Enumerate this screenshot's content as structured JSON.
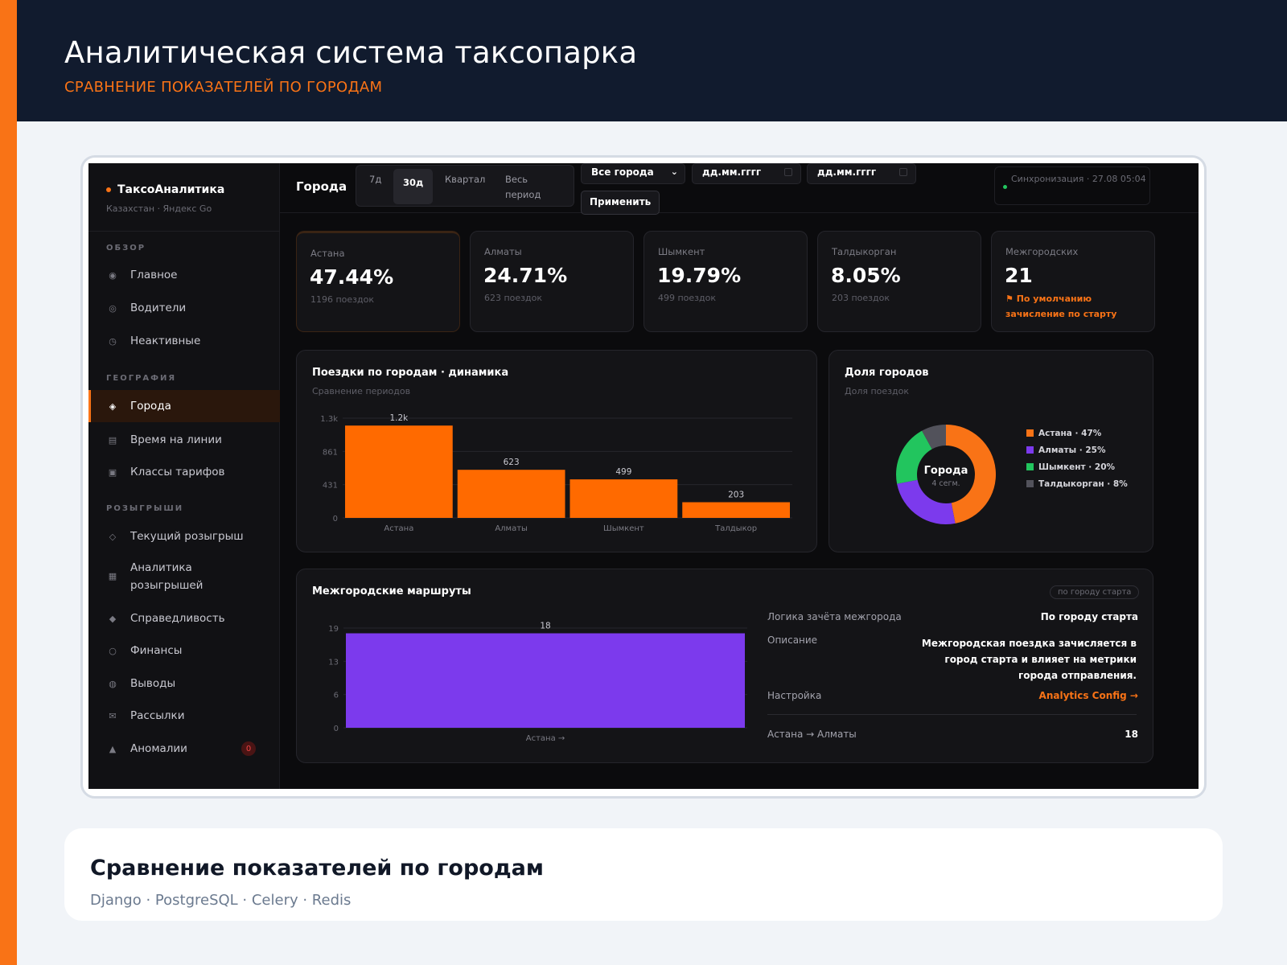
{
  "banner": {
    "title": "Аналитическая система таксопарка",
    "subtitle": "СРАВНЕНИЕ ПОКАЗАТЕЛЕЙ ПО ГОРОДАМ"
  },
  "sidebar": {
    "brand": "ТаксоАналитика",
    "brand_sub": "Казахстан · Яндекс Go",
    "sections": [
      "ОБЗОР",
      "ГЕОГРАФИЯ",
      "РОЗЫГРЫШИ"
    ],
    "items": [
      {
        "label": "Главное",
        "icon": "circle-dot-icon"
      },
      {
        "label": "Водители",
        "icon": "user-icon"
      },
      {
        "label": "Неактивные",
        "icon": "clock-icon"
      },
      {
        "label": "Города",
        "icon": "diamond-icon",
        "active": true
      },
      {
        "label": "Время на линии",
        "icon": "list-icon"
      },
      {
        "label": "Классы тарифов",
        "icon": "square-icon"
      },
      {
        "label": "Текущий розыгрыш",
        "icon": "diamond-outline-icon"
      },
      {
        "label": "Аналитика розыгрышей",
        "icon": "grid-icon"
      },
      {
        "label": "Справедливость",
        "icon": "diamond-filled-icon"
      },
      {
        "label": "Финансы",
        "icon": "circle-icon"
      },
      {
        "label": "Выводы",
        "icon": "globe-icon"
      },
      {
        "label": "Рассылки",
        "icon": "mail-icon"
      },
      {
        "label": "Аномалии",
        "icon": "triangle-icon",
        "badge": "0"
      }
    ]
  },
  "topbar": {
    "title": "Города",
    "periods": [
      "7д",
      "30д",
      "Квартал",
      "Весь период"
    ],
    "active_period": "30д",
    "city_select": "Все города",
    "date_from_placeholder": "дд.мм.гггг",
    "date_to_placeholder": "дд.мм.гггг",
    "apply": "Применить",
    "sync": "Синхронизация · 27.08 05:04"
  },
  "kpis": [
    {
      "label": "Астана",
      "value": "47.44%",
      "sub": "1196 поездок"
    },
    {
      "label": "Алматы",
      "value": "24.71%",
      "sub": "623 поездок"
    },
    {
      "label": "Шымкент",
      "value": "19.79%",
      "sub": "499 поездок"
    },
    {
      "label": "Талдыкорган",
      "value": "8.05%",
      "sub": "203 поездок"
    },
    {
      "label": "Межгородских",
      "value": "21",
      "note": "⚑ По умолчанию зачисление по старту"
    }
  ],
  "trips_panel": {
    "title": "Поездки по городам · динамика",
    "subtitle": "Сравнение периодов"
  },
  "share_panel": {
    "title": "Доля городов",
    "subtitle": "Доля поездок",
    "center_title": "Города",
    "center_sub": "4 сегм."
  },
  "routes_panel": {
    "title": "Межгородские маршруты",
    "pill": "по городу старта",
    "rows": [
      {
        "label": "Логика зачёта межгорода",
        "value": "По городу старта"
      },
      {
        "label": "Описание",
        "value": "Межгородская поездка зачисляется в город старта и влияет на метрики города отправления."
      },
      {
        "label": "Настройка",
        "value": "Analytics Config →"
      },
      {
        "label": "Астана → Алматы",
        "value": "18"
      }
    ]
  },
  "footer": {
    "title": "Сравнение показателей по городам",
    "subtitle": "Django · PostgreSQL · Celery · Redis"
  },
  "chart_data": [
    {
      "type": "bar",
      "categories": [
        "Астана",
        "Алматы",
        "Шымкент",
        "Талдыкор"
      ],
      "values": [
        1196,
        623,
        499,
        203
      ],
      "value_labels": [
        "1.2k",
        "623",
        "499",
        "203"
      ],
      "ytick_labels": [
        "0",
        "431",
        "861",
        "1.3k"
      ],
      "ylim": [
        0,
        1292
      ],
      "color": "#ff6a00",
      "grid": true
    },
    {
      "type": "pie",
      "categories": [
        "Астана",
        "Алматы",
        "Шымкент",
        "Талдыкорган"
      ],
      "values": [
        47,
        25,
        20,
        8
      ],
      "legend_labels": [
        "Астана · 47%",
        "Алматы · 25%",
        "Шымкент · 20%",
        "Талдыкорган · 8%"
      ],
      "colors": [
        "#f97316",
        "#7c3aed",
        "#22c55e",
        "#52525b"
      ],
      "legend": "right"
    },
    {
      "type": "bar",
      "categories": [
        "Астана →"
      ],
      "values": [
        18
      ],
      "value_labels": [
        "18"
      ],
      "ytick_labels": [
        "0",
        "6",
        "13",
        "19"
      ],
      "ylim": [
        0,
        19
      ],
      "color": "#7c3aed",
      "grid": true
    }
  ]
}
